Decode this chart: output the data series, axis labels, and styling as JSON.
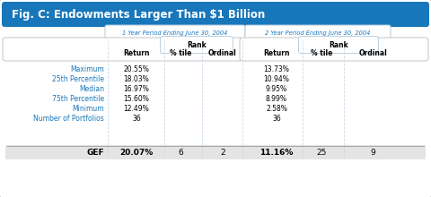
{
  "title": "Fig. C: Endowments Larger Than $1 Billion",
  "title_bg": "#1877bb",
  "title_color": "#ffffff",
  "period1_label": "1 Year Period Ending June 30, 2004",
  "period2_label": "2 Year Period Ending June 30, 2004",
  "col_headers": [
    "Return",
    "% tile",
    "Ordinal",
    "Return",
    "% tile",
    "Ordinal"
  ],
  "rank_label": "Rank",
  "row_labels": [
    "Maximum",
    "25th Percentile",
    "Median",
    "75th Percentile",
    "Minimum",
    "Number of Portfolios"
  ],
  "rows_1yr_return": [
    "20.55%",
    "18.03%",
    "16.97%",
    "15.60%",
    "12.49%",
    "36"
  ],
  "rows_2yr_return": [
    "13.73%",
    "10.94%",
    "9.95%",
    "8.99%",
    "2.58%",
    "36"
  ],
  "gef_label": "GEF",
  "gef_1yr": [
    "20.07%",
    "6",
    "2"
  ],
  "gef_2yr": [
    "11.16%",
    "25",
    "9"
  ],
  "label_color": "#1877bb",
  "bg_color": "#e8e8e8",
  "white": "#ffffff",
  "period_color": "#1877bb",
  "divider_color": "#c8daea",
  "gef_bg": "#dcdcdc",
  "border_color": "#cccccc"
}
